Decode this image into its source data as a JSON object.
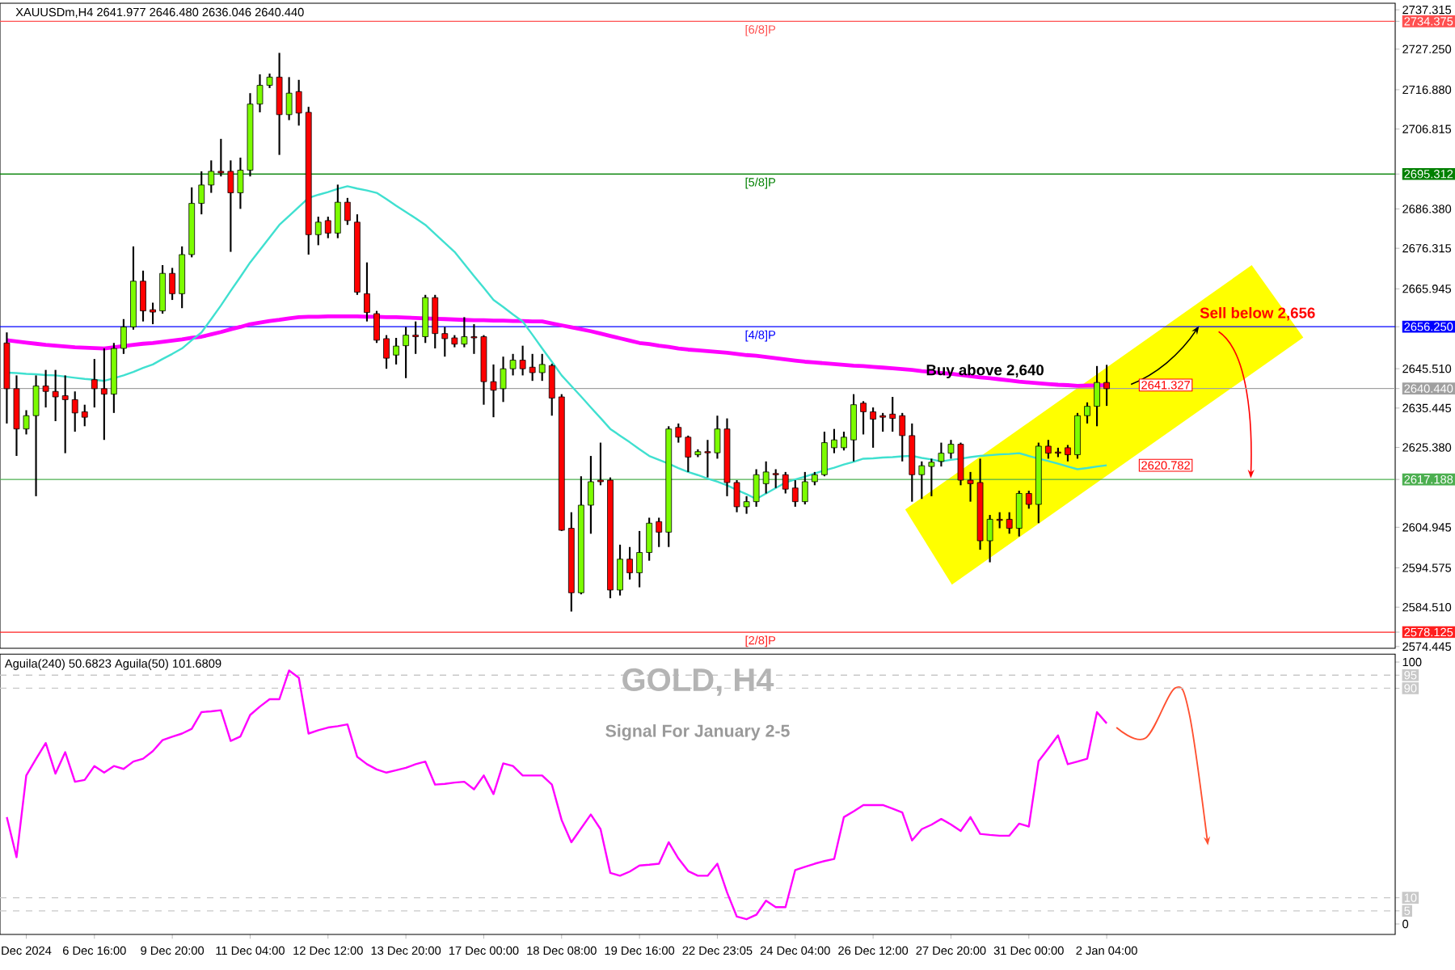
{
  "chart_data": [
    {
      "type": "candlestick",
      "title": "XAUUSDm,H4 2641.977 2646.480 2636.046 2640.440",
      "categories": [
        null,
        null,
        null,
        null,
        null,
        null,
        null,
        null,
        null,
        null,
        null,
        null,
        null,
        null,
        null,
        null,
        null,
        null,
        null,
        null,
        null,
        null,
        null,
        null,
        null,
        null,
        null,
        null,
        null,
        null,
        null,
        null,
        null,
        null,
        null,
        null,
        null,
        null,
        null,
        null,
        null,
        null,
        null,
        null,
        null,
        null,
        null,
        null,
        null,
        null,
        null,
        null,
        null,
        null,
        null,
        null,
        null,
        null,
        null,
        null,
        null,
        null,
        null,
        null,
        null,
        null,
        null,
        null,
        null,
        null,
        null,
        null,
        null,
        null,
        null,
        null,
        null,
        null,
        null,
        null,
        null,
        null,
        null,
        null,
        null,
        null,
        null,
        null,
        null,
        null,
        null,
        null,
        null,
        null,
        null,
        null,
        null,
        null,
        null,
        null,
        null,
        null,
        null,
        null,
        null,
        null,
        null,
        null,
        null,
        null,
        null,
        null,
        null,
        null
      ],
      "ohlc": [
        [
          2652.1,
          2654.8,
          2631.5,
          2640.4
        ],
        [
          2640.4,
          2643.8,
          2623.2,
          2630.1
        ],
        [
          2630.1,
          2634.9,
          2628.7,
          2633.5
        ],
        [
          2633.5,
          2643.8,
          2612.9,
          2641.1
        ],
        [
          2641.1,
          2645.2,
          2635.6,
          2639.7
        ],
        [
          2639.7,
          2645.2,
          2632.1,
          2638.3
        ],
        [
          2638.6,
          2643.8,
          2623.9,
          2637.6
        ],
        [
          2637.6,
          2639.7,
          2629.4,
          2634.2
        ],
        [
          2634.5,
          2636.3,
          2630.8,
          2633.1
        ],
        [
          2642.7,
          2648.0,
          2635.6,
          2640.4
        ],
        [
          2640.4,
          2650.7,
          2627.3,
          2639.0
        ],
        [
          2639.0,
          2652.1,
          2634.2,
          2650.7
        ],
        [
          2650.7,
          2658.2,
          2649.3,
          2656.2
        ],
        [
          2656.2,
          2676.8,
          2655.5,
          2667.9
        ],
        [
          2667.9,
          2670.6,
          2657.6,
          2660.3
        ],
        [
          2660.6,
          2662.4,
          2656.9,
          2660.0
        ],
        [
          2660.3,
          2672.0,
          2659.6,
          2669.9
        ],
        [
          2669.9,
          2671.3,
          2663.1,
          2664.7
        ],
        [
          2664.7,
          2676.8,
          2661.0,
          2674.7
        ],
        [
          2674.7,
          2691.9,
          2674.0,
          2687.8
        ],
        [
          2687.8,
          2696.0,
          2685.0,
          2692.5
        ],
        [
          2692.5,
          2698.8,
          2690.5,
          2696.0
        ],
        [
          2696.0,
          2704.3,
          2694.7,
          2695.6
        ],
        [
          2696.0,
          2698.8,
          2675.4,
          2690.5
        ],
        [
          2690.5,
          2699.5,
          2686.4,
          2696.3
        ],
        [
          2696.3,
          2716.0,
          2694.7,
          2713.2
        ],
        [
          2713.2,
          2720.8,
          2711.1,
          2718.0
        ],
        [
          2718.0,
          2721.0,
          2717.3,
          2720.1
        ],
        [
          2720.1,
          2726.3,
          2700.2,
          2710.5
        ],
        [
          2710.5,
          2720.1,
          2709.1,
          2716.0
        ],
        [
          2716.4,
          2719.4,
          2707.7,
          2710.9
        ],
        [
          2711.1,
          2712.5,
          2674.7,
          2679.8
        ],
        [
          2679.8,
          2684.4,
          2677.1,
          2683.0
        ],
        [
          2683.4,
          2684.4,
          2678.9,
          2680.2
        ],
        [
          2680.2,
          2692.6,
          2678.9,
          2688.1
        ],
        [
          2688.1,
          2689.2,
          2682.3,
          2683.4
        ],
        [
          2683.0,
          2685.0,
          2664.4,
          2665.1
        ],
        [
          2664.7,
          2672.7,
          2657.6,
          2659.9
        ],
        [
          2659.6,
          2660.3,
          2652.1,
          2652.8
        ],
        [
          2653.2,
          2654.1,
          2645.5,
          2648.2
        ],
        [
          2649.0,
          2653.4,
          2646.6,
          2651.3
        ],
        [
          2651.4,
          2656.2,
          2643.1,
          2654.1
        ],
        [
          2654.1,
          2657.6,
          2649.3,
          2653.7
        ],
        [
          2653.7,
          2664.4,
          2652.1,
          2663.7
        ],
        [
          2663.7,
          2664.4,
          2650.7,
          2654.5
        ],
        [
          2654.5,
          2656.2,
          2648.6,
          2653.2
        ],
        [
          2653.4,
          2654.1,
          2651.0,
          2651.8
        ],
        [
          2651.8,
          2658.7,
          2651.0,
          2653.7
        ],
        [
          2653.7,
          2656.9,
          2649.3,
          2653.4
        ],
        [
          2653.7,
          2654.1,
          2636.3,
          2642.2
        ],
        [
          2642.2,
          2646.6,
          2633.1,
          2640.0
        ],
        [
          2640.4,
          2648.6,
          2637.0,
          2645.5
        ],
        [
          2645.5,
          2649.3,
          2643.8,
          2647.7
        ],
        [
          2647.7,
          2651.4,
          2643.8,
          2645.5
        ],
        [
          2645.9,
          2649.3,
          2642.4,
          2644.5
        ],
        [
          2644.5,
          2649.3,
          2642.4,
          2646.6
        ],
        [
          2646.3,
          2646.8,
          2633.5,
          2638.0
        ],
        [
          2638.3,
          2639.0,
          2604.0,
          2604.2
        ],
        [
          2604.7,
          2608.8,
          2583.4,
          2588.2
        ],
        [
          2588.2,
          2618.0,
          2587.8,
          2610.6
        ],
        [
          2610.6,
          2623.2,
          2603.3,
          2616.6
        ],
        [
          2617.0,
          2626.6,
          2615.7,
          2616.6
        ],
        [
          2617.0,
          2617.7,
          2586.8,
          2588.9
        ],
        [
          2588.9,
          2600.5,
          2587.5,
          2596.8
        ],
        [
          2596.8,
          2599.9,
          2591.6,
          2593.3
        ],
        [
          2593.3,
          2604.0,
          2589.6,
          2598.5
        ],
        [
          2598.5,
          2607.4,
          2596.4,
          2606.0
        ],
        [
          2606.4,
          2607.4,
          2599.9,
          2603.7
        ],
        [
          2603.7,
          2630.8,
          2599.9,
          2630.1
        ],
        [
          2630.5,
          2631.5,
          2626.6,
          2628.0
        ],
        [
          2628.0,
          2628.4,
          2619.1,
          2622.9
        ],
        [
          2623.5,
          2624.9,
          2622.9,
          2624.3
        ],
        [
          2624.3,
          2627.3,
          2617.7,
          2624.0
        ],
        [
          2624.0,
          2633.5,
          2622.5,
          2630.1
        ],
        [
          2630.1,
          2632.8,
          2612.9,
          2616.4
        ],
        [
          2616.4,
          2617.0,
          2608.8,
          2610.2
        ],
        [
          2610.2,
          2612.9,
          2608.4,
          2611.5
        ],
        [
          2611.5,
          2619.8,
          2610.2,
          2618.4
        ],
        [
          2616.1,
          2621.8,
          2613.6,
          2619.1
        ],
        [
          2618.7,
          2619.8,
          2615.0,
          2618.4
        ],
        [
          2618.4,
          2619.1,
          2613.6,
          2614.7
        ],
        [
          2615.0,
          2617.0,
          2610.2,
          2611.5
        ],
        [
          2611.5,
          2619.1,
          2610.8,
          2616.6
        ],
        [
          2616.6,
          2619.1,
          2615.7,
          2618.4
        ],
        [
          2618.4,
          2629.4,
          2618.0,
          2626.6
        ],
        [
          2625.3,
          2630.1,
          2623.9,
          2627.3
        ],
        [
          2625.3,
          2629.4,
          2624.6,
          2628.0
        ],
        [
          2627.3,
          2639.0,
          2621.8,
          2636.3
        ],
        [
          2636.7,
          2637.2,
          2628.7,
          2634.5
        ],
        [
          2634.5,
          2635.6,
          2625.3,
          2632.6
        ],
        [
          2633.5,
          2634.2,
          2629.4,
          2633.1
        ],
        [
          2633.9,
          2638.3,
          2629.4,
          2632.8
        ],
        [
          2633.5,
          2634.2,
          2621.8,
          2628.4
        ],
        [
          2628.4,
          2631.5,
          2611.5,
          2618.4
        ],
        [
          2618.4,
          2621.8,
          2612.2,
          2620.7
        ],
        [
          2620.5,
          2622.5,
          2612.9,
          2621.6
        ],
        [
          2621.8,
          2626.6,
          2620.5,
          2623.9
        ],
        [
          2623.9,
          2627.3,
          2622.5,
          2626.2
        ],
        [
          2626.2,
          2626.6,
          2615.7,
          2617.0
        ],
        [
          2617.0,
          2619.1,
          2611.5,
          2616.1
        ],
        [
          2616.4,
          2622.5,
          2599.2,
          2601.5
        ],
        [
          2601.5,
          2608.1,
          2596.0,
          2607.0
        ],
        [
          2607.0,
          2608.8,
          2604.7,
          2606.7
        ],
        [
          2607.0,
          2608.8,
          2603.3,
          2604.7
        ],
        [
          2604.7,
          2614.3,
          2602.6,
          2613.6
        ],
        [
          2613.6,
          2614.3,
          2609.7,
          2610.8
        ],
        [
          2610.8,
          2626.6,
          2606.0,
          2625.7
        ],
        [
          2625.7,
          2627.3,
          2622.5,
          2623.9
        ],
        [
          2624.2,
          2625.3,
          2622.9,
          2623.9
        ],
        [
          2625.3,
          2626.0,
          2621.8,
          2623.5
        ],
        [
          2623.5,
          2634.2,
          2622.5,
          2633.5
        ],
        [
          2633.5,
          2636.9,
          2631.5,
          2635.9
        ],
        [
          2635.9,
          2646.2,
          2630.8,
          2642.0
        ],
        [
          2642.0,
          2646.5,
          2636.0,
          2640.4
        ]
      ],
      "series": [
        {
          "type": "line",
          "color": "#ff00ff",
          "values": [
            2652.8,
            2652.5,
            2652.2,
            2651.9,
            2651.6,
            2651.4,
            2651.2,
            2651.0,
            2650.9,
            2650.8,
            2650.7,
            2651.0,
            2651.3,
            2651.6,
            2651.9,
            2652.1,
            2652.4,
            2652.7,
            2653.0,
            2653.4,
            2653.7,
            2654.3,
            2654.9,
            2655.6,
            2656.2,
            2656.9,
            2657.3,
            2657.7,
            2658.0,
            2658.4,
            2658.7,
            2658.8,
            2658.8,
            2658.9,
            2658.9,
            2658.9,
            2658.9,
            2658.8,
            2658.8,
            2658.7,
            2658.7,
            2658.6,
            2658.5,
            2658.4,
            2658.3,
            2658.2,
            2658.1,
            2658.0,
            2657.9,
            2657.9,
            2657.8,
            2657.8,
            2657.7,
            2657.7,
            2657.6,
            2657.6,
            2657.1,
            2656.6,
            2656.1,
            2655.6,
            2655.1,
            2654.5,
            2653.9,
            2653.3,
            2652.7,
            2652.1,
            2651.8,
            2651.4,
            2651.1,
            2650.7,
            2650.4,
            2650.2,
            2650.0,
            2649.8,
            2649.6,
            2649.3,
            2649.0,
            2648.8,
            2648.5,
            2648.2,
            2647.9,
            2647.6,
            2647.3,
            2647.1,
            2646.9,
            2646.7,
            2646.5,
            2646.3,
            2646.2,
            2646.0,
            2645.8,
            2645.6,
            2645.4,
            2645.2,
            2644.9,
            2644.7,
            2644.4,
            2644.2,
            2643.9,
            2643.6,
            2643.3,
            2643.1,
            2642.8,
            2642.5,
            2642.2,
            2642.0,
            2641.8,
            2641.6,
            2641.4,
            2641.3,
            2641.1,
            2641.2,
            2641.2,
            2641.3
          ]
        },
        {
          "type": "line",
          "color": "#40e0d0",
          "values": [
            2644.5,
            2644.4,
            2644.2,
            2644.1,
            2643.9,
            2643.8,
            2643.5,
            2643.2,
            2642.9,
            2642.7,
            2642.4,
            2643.1,
            2643.8,
            2644.7,
            2645.7,
            2646.6,
            2648.0,
            2649.3,
            2650.7,
            2652.8,
            2654.8,
            2658.2,
            2661.7,
            2665.4,
            2669.0,
            2672.7,
            2675.9,
            2679.1,
            2682.3,
            2684.6,
            2686.9,
            2689.2,
            2690.0,
            2690.7,
            2691.5,
            2692.2,
            2691.6,
            2691.1,
            2690.5,
            2688.9,
            2687.2,
            2685.6,
            2684.0,
            2682.3,
            2680.0,
            2677.7,
            2675.4,
            2672.3,
            2669.2,
            2666.2,
            2663.1,
            2661.3,
            2659.4,
            2657.6,
            2654.2,
            2650.7,
            2647.3,
            2643.8,
            2641.1,
            2638.4,
            2635.6,
            2632.9,
            2630.1,
            2628.4,
            2626.7,
            2624.9,
            2623.2,
            2622.2,
            2621.2,
            2620.1,
            2619.1,
            2618.3,
            2617.4,
            2616.6,
            2615.7,
            2614.5,
            2613.4,
            2612.2,
            2613.6,
            2615.0,
            2616.4,
            2617.2,
            2617.9,
            2618.7,
            2619.5,
            2620.2,
            2621.0,
            2621.7,
            2622.5,
            2622.6,
            2622.8,
            2622.9,
            2623.1,
            2623.2,
            2622.7,
            2622.3,
            2621.8,
            2622.2,
            2622.5,
            2622.9,
            2623.2,
            2623.4,
            2623.6,
            2623.7,
            2623.9,
            2623.2,
            2622.5,
            2621.9,
            2621.2,
            2620.5,
            2619.8,
            2620.1,
            2620.5,
            2620.8
          ]
        }
      ],
      "ylim": [
        2574,
        2739
      ],
      "yticks": [
        2737.315,
        2734.375,
        {
          "value": 2727.25,
          "label": "2727.250"
        },
        {
          "value": 2716.88,
          "label": "2716.880"
        },
        2706.815,
        2695.312,
        {
          "value": 2686.38,
          "label": "2686.380"
        },
        2676.315,
        2665.945,
        {
          "value": 2656.25,
          "label": "2656.250"
        },
        {
          "value": 2645.51,
          "label": "2645.510"
        },
        {
          "value": 2640.44,
          "label": "2640.440"
        },
        2635.445,
        {
          "value": 2625.38,
          "label": "2625.380"
        },
        2617.188,
        2604.945,
        2594.575,
        {
          "value": 2584.51,
          "label": "2584.510"
        },
        2578.125,
        2574.445
      ],
      "ref_lines": [
        {
          "axis": "y",
          "value": 2734.375,
          "label": "[6/8]P",
          "color": "#ff5050"
        },
        {
          "axis": "y",
          "value": 2695.312,
          "label": "[5/8]P",
          "color": "#008000"
        },
        {
          "axis": "y",
          "value": 2656.25,
          "label": "[4/8]P",
          "color": "#0000ff"
        },
        {
          "axis": "y",
          "value": 2640.44,
          "color": "#a0a0a0"
        },
        {
          "axis": "y",
          "value": 2617.188,
          "color": "#4caf50"
        },
        {
          "axis": "y",
          "value": 2578.125,
          "label": "[2/8]P",
          "color": "#ff2020"
        }
      ],
      "annotations": [
        {
          "text": "Buy above 2,640",
          "y": 2640.44
        },
        {
          "text": "Sell below 2,656",
          "y": 2656.25
        },
        {
          "text": "2641.327",
          "y": 2641.327
        },
        "2620.782"
      ]
    },
    {
      "type": "line",
      "title": "GOLD, H4",
      "subtitle": "Signal For January 2-5",
      "annotations": [
        "Aguila(240) 50.6823 Aguila(50) 101.6809"
      ],
      "categories": [
        null,
        null,
        "Dec 2024",
        null,
        null,
        null,
        null,
        null,
        null,
        "6 Dec 16:00",
        null,
        null,
        null,
        null,
        null,
        null,
        null,
        "9 Dec 20:00",
        null,
        null,
        null,
        null,
        null,
        null,
        null,
        "11 Dec 04:00",
        null,
        null,
        null,
        null,
        null,
        null,
        null,
        "12 Dec 12:00",
        null,
        null,
        null,
        null,
        null,
        null,
        null,
        "13 Dec 20:00",
        null,
        null,
        null,
        null,
        null,
        null,
        null,
        "17 Dec 00:00",
        null,
        null,
        null,
        null,
        null,
        null,
        null,
        "18 Dec 08:00",
        null,
        null,
        null,
        null,
        null,
        null,
        null,
        "19 Dec 16:00",
        null,
        null,
        null,
        null,
        null,
        null,
        null,
        "22 Dec 23:05",
        null,
        null,
        null,
        null,
        null,
        null,
        null,
        "24 Dec 04:00",
        null,
        null,
        null,
        null,
        null,
        null,
        null,
        "26 Dec 12:00",
        null,
        null,
        null,
        null,
        null,
        null,
        null,
        "27 Dec 20:00",
        null,
        null,
        null,
        null,
        null,
        null,
        null,
        "31 Dec 00:00",
        null,
        null,
        null,
        null,
        null,
        null,
        null,
        "2 Jan 04:00"
      ],
      "series": [
        {
          "color": "#ff00ff",
          "values": [
            40.8,
            25.5,
            56.7,
            63.0,
            69.1,
            57.4,
            65.6,
            54.3,
            55.0,
            60.3,
            57.8,
            60.3,
            59.2,
            62.0,
            63.1,
            66.0,
            70.2,
            71.5,
            72.7,
            74.5,
            80.9,
            81.2,
            81.6,
            69.9,
            71.6,
            79.8,
            83.0,
            85.8,
            85.8,
            96.8,
            94.0,
            72.7,
            74.0,
            75.0,
            75.5,
            76.2,
            63.8,
            61.0,
            59.0,
            57.8,
            58.7,
            59.6,
            61.0,
            62.0,
            53.2,
            53.5,
            54.0,
            54.3,
            51.4,
            56.7,
            49.6,
            61.3,
            60.3,
            56.7,
            56.7,
            56.7,
            53.2,
            39.7,
            31.2,
            36.5,
            41.8,
            36.2,
            19.5,
            18.4,
            20.0,
            22.3,
            22.6,
            23.0,
            31.2,
            25.0,
            20.2,
            18.4,
            18.4,
            23.0,
            12.0,
            2.8,
            1.8,
            3.5,
            8.9,
            6.4,
            6.4,
            20.6,
            21.8,
            23.0,
            24.0,
            24.8,
            40.8,
            43.0,
            45.4,
            45.4,
            45.4,
            44.0,
            42.6,
            31.9,
            36.2,
            37.9,
            40.1,
            38.0,
            35.5,
            40.8,
            34.4,
            34.0,
            33.7,
            33.7,
            38.3,
            37.2,
            62.1,
            67.0,
            72.0,
            61.0,
            62.0,
            63.1,
            80.9,
            76.6
          ]
        }
      ],
      "ylim": [
        -4,
        103
      ],
      "yticks": [
        100,
        95,
        90,
        10,
        5,
        0
      ],
      "ref_lines": [
        {
          "axis": "y",
          "value": 95,
          "color": "#c8c8c8",
          "line_style": "dashed"
        },
        {
          "axis": "y",
          "value": 90,
          "color": "#c8c8c8",
          "line_style": "dashed"
        },
        {
          "axis": "y",
          "value": 10,
          "color": "#c8c8c8",
          "line_style": "dashed"
        },
        {
          "axis": "y",
          "value": 5,
          "color": "#c8c8c8",
          "line_style": "dashed"
        }
      ]
    }
  ]
}
